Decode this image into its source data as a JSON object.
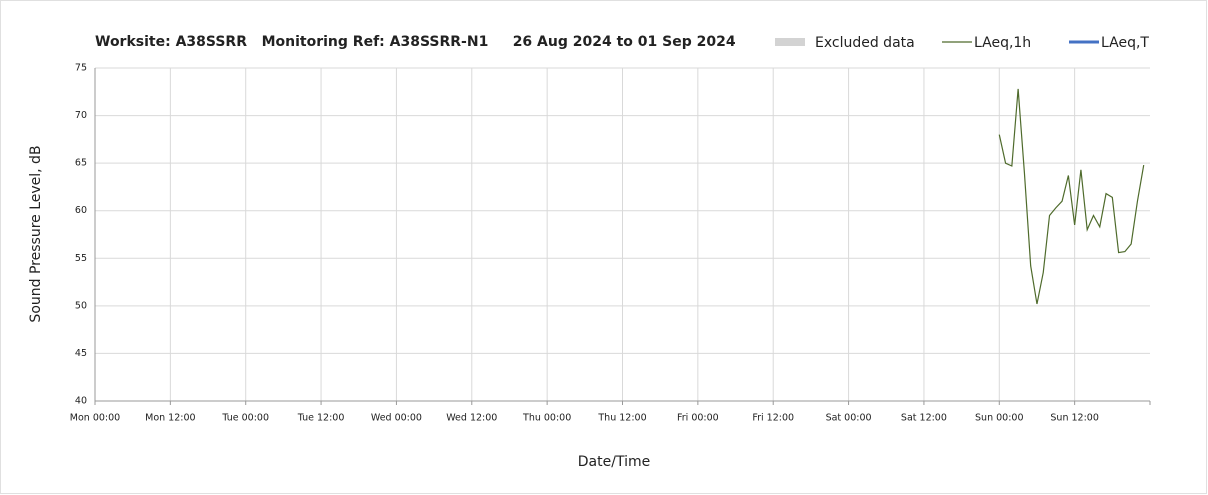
{
  "chart_data": {
    "type": "line",
    "title": "Worksite: A38SSRR   Monitoring Ref: A38SSRR-N1     26 Aug 2024 to 01 Sep 2024",
    "xlabel": "Date/Time",
    "ylabel": "Sound Pressure Level, dB",
    "x": [
      144,
      145,
      146,
      147,
      148,
      149,
      150,
      151,
      152,
      153,
      154,
      155,
      156,
      157,
      158,
      159,
      160,
      161,
      162,
      163,
      164,
      165,
      166,
      167
    ],
    "series": [
      {
        "name": "Excluded data",
        "color": "#d3d3d3",
        "style": "box",
        "values": [
          null,
          null,
          null,
          null,
          null,
          null,
          null,
          null,
          null,
          null,
          null,
          null,
          null,
          null,
          null,
          null,
          null,
          null,
          null,
          null,
          null,
          null,
          null,
          null
        ]
      },
      {
        "name": "LAeq,1h",
        "color": "#4f6b2c",
        "style": "line",
        "values": [
          68.0,
          65.0,
          64.7,
          72.8,
          64.0,
          54.2,
          50.2,
          53.5,
          59.5,
          60.3,
          61.0,
          63.7,
          58.5,
          64.3,
          58.0,
          59.5,
          58.3,
          61.8,
          61.4,
          55.6,
          55.7,
          56.5,
          61.0,
          64.8
        ]
      },
      {
        "name": "LAeq,T",
        "color": "#4472c4",
        "style": "line",
        "values": [
          null,
          null,
          null,
          null,
          null,
          null,
          null,
          null,
          null,
          null,
          null,
          null,
          null,
          null,
          null,
          null,
          null,
          null,
          null,
          null,
          null,
          null,
          null,
          null
        ]
      }
    ],
    "xlim": [
      0,
      168
    ],
    "xticks": [
      {
        "value": 0,
        "label": "Mon 00:00"
      },
      {
        "value": 12,
        "label": "Mon 12:00"
      },
      {
        "value": 24,
        "label": "Tue 00:00"
      },
      {
        "value": 36,
        "label": "Tue 12:00"
      },
      {
        "value": 48,
        "label": "Wed 00:00"
      },
      {
        "value": 60,
        "label": "Wed 12:00"
      },
      {
        "value": 72,
        "label": "Thu 00:00"
      },
      {
        "value": 84,
        "label": "Thu 12:00"
      },
      {
        "value": 96,
        "label": "Fri 00:00"
      },
      {
        "value": 108,
        "label": "Fri 12:00"
      },
      {
        "value": 120,
        "label": "Sat 00:00"
      },
      {
        "value": 132,
        "label": "Sat 12:00"
      },
      {
        "value": 144,
        "label": "Sun 00:00"
      },
      {
        "value": 156,
        "label": "Sun 12:00"
      }
    ],
    "ylim": [
      40,
      75
    ],
    "yticks": [
      40,
      45,
      50,
      55,
      60,
      65,
      70,
      75
    ],
    "grid": true
  }
}
